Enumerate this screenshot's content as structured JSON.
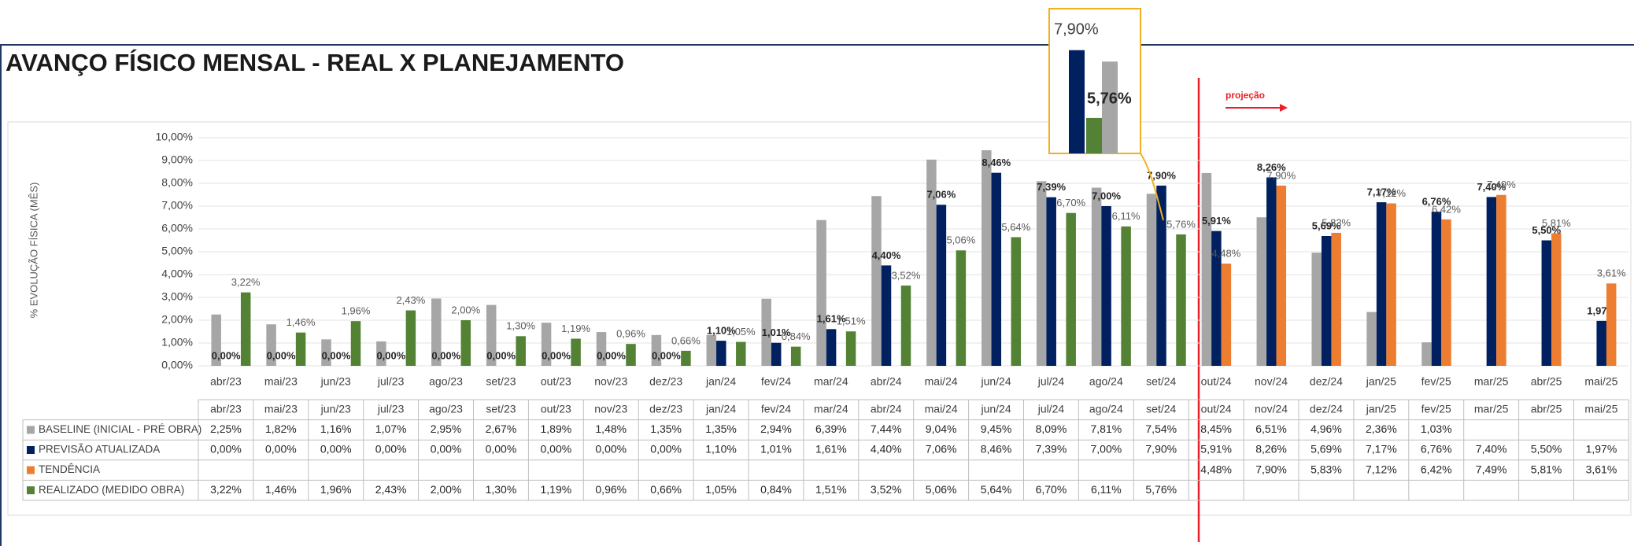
{
  "chart_data": {
    "type": "bar",
    "title": "AVANÇO FÍSICO MENSAL - REAL  X PLANEJAMENTO",
    "y_label": "% EVOLUÇÃO FÍSICA (MÊS)",
    "annotation": "projeção",
    "categories": [
      "abr/23",
      "mai/23",
      "jun/23",
      "jul/23",
      "ago/23",
      "set/23",
      "out/23",
      "nov/23",
      "dez/23",
      "jan/24",
      "fev/24",
      "mar/24",
      "abr/24",
      "mai/24",
      "jun/24",
      "jul/24",
      "ago/24",
      "set/24",
      "out/24",
      "nov/24",
      "dez/24",
      "jan/25",
      "fev/25",
      "mar/25",
      "abr/25",
      "mai/25"
    ],
    "ylim": [
      0,
      10
    ],
    "yticks": [
      {
        "value": 0,
        "label": "0,00%"
      },
      {
        "value": 1,
        "label": "1,00%"
      },
      {
        "value": 2,
        "label": "2,00%"
      },
      {
        "value": 3,
        "label": "3,00%"
      },
      {
        "value": 4,
        "label": "4,00%"
      },
      {
        "value": 5,
        "label": "5,00%"
      },
      {
        "value": 6,
        "label": "6,00%"
      },
      {
        "value": 7,
        "label": "7,00%"
      },
      {
        "value": 8,
        "label": "8,00%"
      },
      {
        "value": 9,
        "label": "9,00%"
      },
      {
        "value": 10,
        "label": "10,00%"
      }
    ],
    "grid": true,
    "series": [
      {
        "name": "BASELINE (INICIAL - PRÉ OBRA)",
        "color": "#a6a6a6",
        "values": [
          2.25,
          1.82,
          1.16,
          1.07,
          2.95,
          2.67,
          1.89,
          1.48,
          1.35,
          1.35,
          2.94,
          6.39,
          7.44,
          9.04,
          9.45,
          8.09,
          7.81,
          7.54,
          8.45,
          6.51,
          4.96,
          2.36,
          1.03,
          null,
          null,
          null
        ],
        "value_labels": [
          "2,25%",
          "1,82%",
          "1,16%",
          "1,07%",
          "2,95%",
          "2,67%",
          "1,89%",
          "1,48%",
          "1,35%",
          "1,35%",
          "2,94%",
          "6,39%",
          "7,44%",
          "9,04%",
          "9,45%",
          "8,09%",
          "7,81%",
          "7,54%",
          "8,45%",
          "6,51%",
          "4,96%",
          "2,36%",
          "1,03%",
          null,
          null,
          null
        ]
      },
      {
        "name": "PREVISÃO ATUALIZADA",
        "color": "#002060",
        "values": [
          0,
          0,
          0,
          0,
          0,
          0,
          0,
          0,
          0,
          1.1,
          1.01,
          1.61,
          4.4,
          7.06,
          8.46,
          7.39,
          7.0,
          7.9,
          5.91,
          8.26,
          5.69,
          7.17,
          6.76,
          7.4,
          5.5,
          1.97
        ],
        "value_labels": [
          "0,00%",
          "0,00%",
          "0,00%",
          "0,00%",
          "0,00%",
          "0,00%",
          "0,00%",
          "0,00%",
          "0,00%",
          "1,10%",
          "1,01%",
          "1,61%",
          "4,40%",
          "7,06%",
          "8,46%",
          "7,39%",
          "7,00%",
          "7,90%",
          "5,91%",
          "8,26%",
          "5,69%",
          "7,17%",
          "6,76%",
          "7,40%",
          "5,50%",
          "1,97%"
        ]
      },
      {
        "name": "TENDÊNCIA",
        "color": "#ed7d31",
        "values": [
          null,
          null,
          null,
          null,
          null,
          null,
          null,
          null,
          null,
          null,
          null,
          null,
          null,
          null,
          null,
          null,
          null,
          null,
          4.48,
          7.9,
          5.83,
          7.12,
          6.42,
          7.49,
          5.81,
          3.61
        ],
        "value_labels": [
          null,
          null,
          null,
          null,
          null,
          null,
          null,
          null,
          null,
          null,
          null,
          null,
          null,
          null,
          null,
          null,
          null,
          null,
          "4,48%",
          "7,90%",
          "5,83%",
          "7,12%",
          "6,42%",
          "7,49%",
          "5,81%",
          "3,61%"
        ]
      },
      {
        "name": "REALIZADO (MEDIDO OBRA)",
        "color": "#548235",
        "values": [
          3.22,
          1.46,
          1.96,
          2.43,
          2.0,
          1.3,
          1.19,
          0.96,
          0.66,
          1.05,
          0.84,
          1.51,
          3.52,
          5.06,
          5.64,
          6.7,
          6.11,
          5.76,
          null,
          null,
          null,
          null,
          null,
          null,
          null,
          null
        ],
        "value_labels": [
          "3,22%",
          "1,46%",
          "1,96%",
          "2,43%",
          "2,00%",
          "1,30%",
          "1,19%",
          "0,96%",
          "0,66%",
          "1,05%",
          "0,84%",
          "1,51%",
          "3,52%",
          "5,06%",
          "5,64%",
          "6,70%",
          "6,11%",
          "5,76%",
          null,
          null,
          null,
          null,
          null,
          null,
          null,
          null
        ]
      }
    ]
  }
}
